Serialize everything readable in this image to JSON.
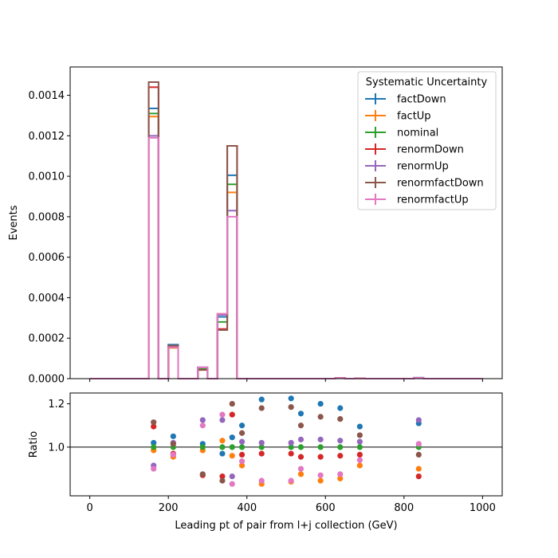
{
  "chart_data": [
    {
      "type": "step-histogram",
      "ylabel": "Events",
      "ylim": [
        0,
        0.00154
      ],
      "xlim": [
        -50,
        1050
      ],
      "yticks": [
        0,
        0.0002,
        0.0004,
        0.0006,
        0.0008,
        0.001,
        0.0012,
        0.0014
      ],
      "ytick_labels": [
        "0.0000",
        "0.0002",
        "0.0004",
        "0.0006",
        "0.0008",
        "0.0010",
        "0.0012",
        "0.0014"
      ],
      "bin_edges": [
        0,
        25,
        50,
        75,
        100,
        125,
        150,
        175,
        200,
        225,
        250,
        275,
        300,
        325,
        350,
        375,
        400,
        425,
        450,
        475,
        500,
        525,
        550,
        575,
        600,
        625,
        650,
        675,
        700,
        725,
        750,
        775,
        800,
        825,
        850,
        875,
        900,
        925,
        950,
        975,
        1000
      ],
      "legend": {
        "title": "Systematic Uncertainty",
        "location": "upper right"
      },
      "series": [
        {
          "name": "factDown",
          "color": "#1f77b4",
          "values": [
            0,
            0,
            0,
            0,
            0,
            0,
            0.001335,
            0,
            0.000168,
            0,
            0,
            5.25e-05,
            0,
            0.000305,
            0.001005,
            0,
            0,
            0,
            0,
            0,
            0,
            0,
            0,
            0,
            0,
            3.5e-06,
            0,
            2e-06,
            0,
            0,
            0,
            0,
            0,
            4.5e-06,
            0,
            0,
            0,
            0,
            0,
            0
          ]
        },
        {
          "name": "factUp",
          "color": "#ff7f0e",
          "values": [
            0,
            0,
            0,
            0,
            0,
            0,
            0.001295,
            0,
            0.000152,
            0,
            0,
            4.85e-05,
            0,
            0.00032,
            0.00092,
            0,
            0,
            0,
            0,
            0,
            0,
            0,
            0,
            0,
            0,
            2.8e-06,
            0,
            1.7e-06,
            0,
            0,
            0,
            0,
            0,
            3.6e-06,
            0,
            0,
            0,
            0,
            0,
            0
          ]
        },
        {
          "name": "nominal",
          "color": "#2ca02c",
          "values": [
            0,
            0,
            0,
            0,
            0,
            0,
            0.00131,
            0,
            0.00016,
            0,
            0,
            5e-05,
            0,
            0.00028,
            0.00096,
            0,
            0,
            0,
            0,
            0,
            0,
            0,
            0,
            0,
            0,
            3.2e-06,
            0,
            1.8e-06,
            0,
            0,
            0,
            0,
            0,
            4e-06,
            0,
            0,
            0,
            0,
            0,
            0
          ]
        },
        {
          "name": "renormDown",
          "color": "#d62728",
          "values": [
            0,
            0,
            0,
            0,
            0,
            0,
            0.00144,
            0,
            0.000155,
            0,
            0,
            4.3e-05,
            0,
            0.000245,
            0.00115,
            0,
            0,
            0,
            0,
            0,
            0,
            0,
            0,
            0,
            0,
            3.1e-06,
            0,
            1.7e-06,
            0,
            0,
            0,
            0,
            0,
            3.5e-06,
            0,
            0,
            0,
            0,
            0,
            0
          ]
        },
        {
          "name": "renormUp",
          "color": "#9467bd",
          "values": [
            0,
            0,
            0,
            0,
            0,
            0,
            0.0012,
            0,
            0.000162,
            0,
            0,
            5.6e-05,
            0,
            0.000315,
            0.00083,
            0,
            0,
            0,
            0,
            0,
            0,
            0,
            0,
            0,
            0,
            3.3e-06,
            0,
            1.9e-06,
            0,
            0,
            0,
            0,
            0,
            4.5e-06,
            0,
            0,
            0,
            0,
            0,
            0
          ]
        },
        {
          "name": "renormfactDown",
          "color": "#8c564b",
          "values": [
            0,
            0,
            0,
            0,
            0,
            0,
            0.001465,
            0,
            0.000163,
            0,
            0,
            4.35e-05,
            0,
            0.00024,
            0.00115,
            0,
            0,
            0,
            0,
            0,
            0,
            0,
            0,
            0,
            0,
            3.6e-06,
            0,
            2e-06,
            0,
            0,
            0,
            0,
            0,
            3.9e-06,
            0,
            0,
            0,
            0,
            0,
            0
          ]
        },
        {
          "name": "renormfactUp",
          "color": "#e377c2",
          "values": [
            0,
            0,
            0,
            0,
            0,
            0,
            0.00119,
            0,
            0.000155,
            0,
            0,
            5.5e-05,
            0,
            0.00032,
            0.0008,
            0,
            0,
            0,
            0,
            0,
            0,
            0,
            0,
            0,
            0,
            2.8e-06,
            0,
            1.6e-06,
            0,
            0,
            0,
            0,
            0,
            4.1e-06,
            0,
            0,
            0,
            0,
            0,
            0
          ]
        }
      ]
    },
    {
      "type": "scatter",
      "xlabel": "Leading pt of pair from l+j collection (GeV)",
      "ylabel": "Ratio",
      "xlim": [
        -50,
        1050
      ],
      "ylim": [
        0.775,
        1.25
      ],
      "xticks": [
        0,
        200,
        400,
        600,
        800,
        1000
      ],
      "xtick_labels": [
        "0",
        "200",
        "400",
        "600",
        "800",
        "1000"
      ],
      "yticks": [
        1.0,
        1.2
      ],
      "ytick_labels": [
        "1.0",
        "1.2"
      ],
      "reference_line": 1.0,
      "x": [
        162.5,
        212.5,
        287.5,
        337.5,
        362.5,
        387.5,
        437.5,
        512.5,
        537.5,
        587.5,
        637.5,
        687.5,
        837.5
      ],
      "series": [
        {
          "name": "factDown",
          "color": "#1f77b4",
          "values": [
            1.02,
            1.05,
            1.015,
            0.97,
            1.045,
            1.1,
            1.22,
            1.225,
            1.155,
            1.2,
            1.18,
            1.095,
            1.11
          ]
        },
        {
          "name": "factUp",
          "color": "#ff7f0e",
          "values": [
            0.985,
            0.955,
            0.985,
            1.03,
            0.96,
            0.915,
            0.83,
            0.84,
            0.875,
            0.845,
            0.855,
            0.915,
            0.9
          ]
        },
        {
          "name": "nominal",
          "color": "#2ca02c",
          "values": [
            1.0,
            1.0,
            1.0,
            1.0,
            1.0,
            1.0,
            1.0,
            1.0,
            1.0,
            1.0,
            1.0,
            1.0,
            1.0
          ]
        },
        {
          "name": "renormDown",
          "color": "#d62728",
          "values": [
            1.095,
            0.97,
            0.87,
            0.865,
            1.15,
            0.965,
            0.97,
            0.97,
            0.955,
            0.955,
            0.96,
            0.965,
            0.865
          ]
        },
        {
          "name": "renormUp",
          "color": "#9467bd",
          "values": [
            0.915,
            1.02,
            1.125,
            1.125,
            0.865,
            1.025,
            1.02,
            1.02,
            1.035,
            1.035,
            1.03,
            1.025,
            1.125
          ]
        },
        {
          "name": "renormfactDown",
          "color": "#8c564b",
          "values": [
            1.115,
            1.015,
            0.875,
            0.845,
            1.2,
            1.065,
            1.18,
            1.185,
            1.1,
            1.14,
            1.13,
            1.055,
            0.965
          ]
        },
        {
          "name": "renormfactUp",
          "color": "#e377c2",
          "values": [
            0.9,
            0.965,
            1.1,
            1.15,
            0.83,
            0.935,
            0.845,
            0.845,
            0.9,
            0.87,
            0.875,
            0.94,
            1.015
          ]
        }
      ]
    }
  ]
}
